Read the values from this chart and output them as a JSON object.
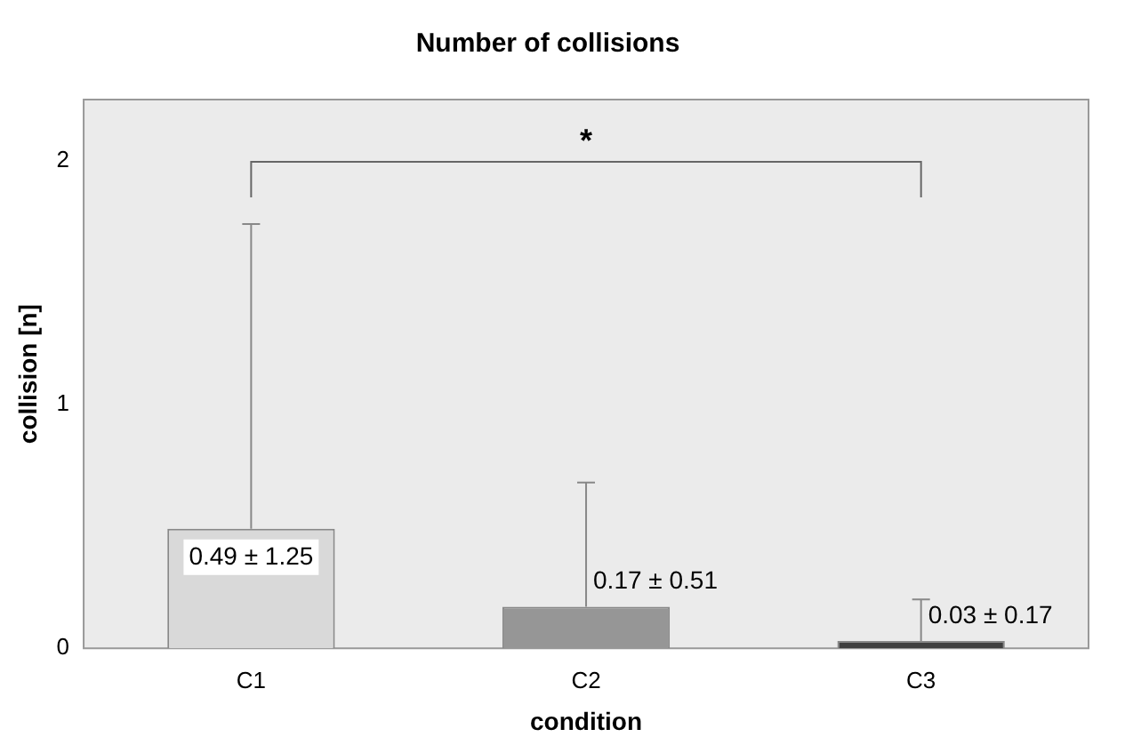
{
  "chart_data": {
    "type": "bar",
    "title": "Number of collisions",
    "xlabel": "condition",
    "ylabel": "collision [n]",
    "categories": [
      "C1",
      "C2",
      "C3"
    ],
    "values": [
      0.49,
      0.17,
      0.03
    ],
    "colors": [
      "#d9d9d9",
      "#969696",
      "#3f3f3f"
    ],
    "errors": [
      [
        0.49,
        1.74
      ],
      [
        0.17,
        0.68
      ],
      [
        0.03,
        0.2
      ]
    ],
    "value_labels": [
      "0.49 ± 1.25",
      "0.17 ± 0.51",
      "0.03 ± 0.17"
    ],
    "ylim": [
      0,
      2.25
    ],
    "yticks": [
      0,
      1,
      2
    ],
    "grid": false,
    "legend": false,
    "annotations": [
      "*"
    ]
  }
}
